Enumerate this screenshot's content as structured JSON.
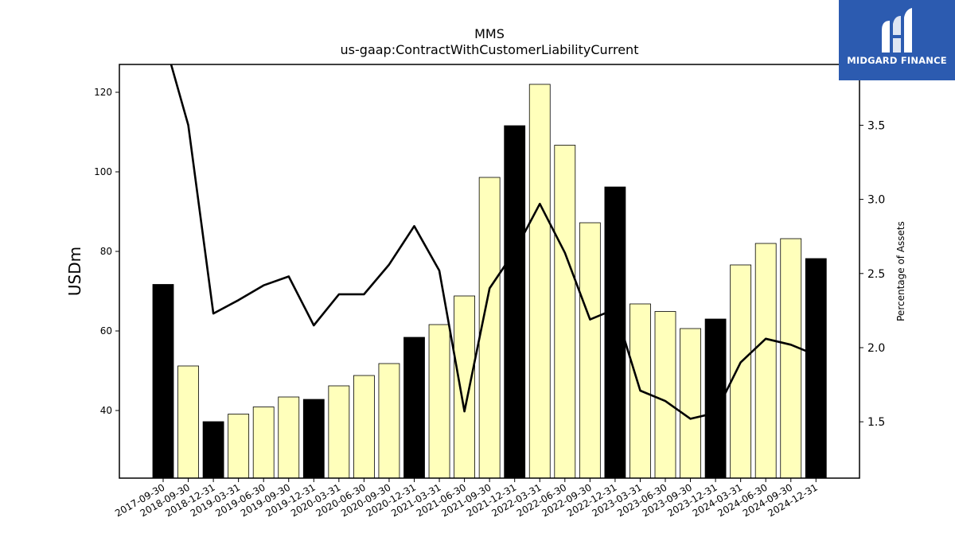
{
  "chart_data": {
    "type": "bar",
    "title": "MMS",
    "subtitle": "us-gaap:ContractWithCustomerLiabilityCurrent",
    "ylabel": "USDm",
    "y2label": "Percentage of Assets",
    "ylim": [
      23,
      127
    ],
    "y2lim": [
      1.12,
      3.91
    ],
    "yticks": [
      40,
      60,
      80,
      100,
      120
    ],
    "y2ticks": [
      "1.5",
      "2.0",
      "2.5",
      "3.0",
      "3.5"
    ],
    "categories": [
      "2017-09-30",
      "2018-09-30",
      "2018-12-31",
      "2019-03-31",
      "2019-06-30",
      "2019-09-30",
      "2019-12-31",
      "2020-03-31",
      "2020-06-30",
      "2020-09-30",
      "2020-12-31",
      "2021-03-31",
      "2021-06-30",
      "2021-09-30",
      "2021-12-31",
      "2022-03-31",
      "2022-06-30",
      "2022-09-30",
      "2022-12-31",
      "2023-03-31",
      "2023-06-30",
      "2023-09-30",
      "2023-12-31",
      "2024-03-31",
      "2024-06-30",
      "2024-09-30",
      "2024-12-31"
    ],
    "series": [
      {
        "type": "bar",
        "values": [
          71.7,
          51.2,
          37.2,
          39.1,
          40.9,
          43.4,
          42.8,
          46.2,
          48.8,
          51.8,
          58.4,
          61.6,
          68.8,
          98.6,
          111.6,
          122.0,
          106.7,
          87.2,
          96.2,
          66.8,
          64.9,
          60.6,
          63.0,
          76.6,
          82.0,
          83.2,
          78.2
        ],
        "annual": [
          true,
          false,
          true,
          false,
          false,
          false,
          true,
          false,
          false,
          false,
          true,
          false,
          false,
          false,
          true,
          false,
          false,
          false,
          true,
          false,
          false,
          false,
          true,
          false,
          false,
          false,
          true
        ]
      },
      {
        "type": "line",
        "axis": "right",
        "values": [
          4.1,
          3.5,
          2.23,
          2.32,
          2.42,
          2.48,
          2.15,
          2.36,
          2.36,
          2.56,
          2.82,
          2.52,
          1.57,
          2.4,
          2.65,
          2.97,
          2.64,
          2.19,
          2.26,
          1.71,
          1.64,
          1.52,
          1.56,
          1.9,
          2.06,
          2.02,
          1.95
        ]
      }
    ],
    "colors": {
      "quarter_bar": "#ffffbb",
      "annual_bar": "#000000",
      "bar_edge": "#000000",
      "line": "#000000"
    },
    "grid": false
  },
  "logo": {
    "text": "MIDGARD FINANCE",
    "background": "#2c5bb0"
  }
}
